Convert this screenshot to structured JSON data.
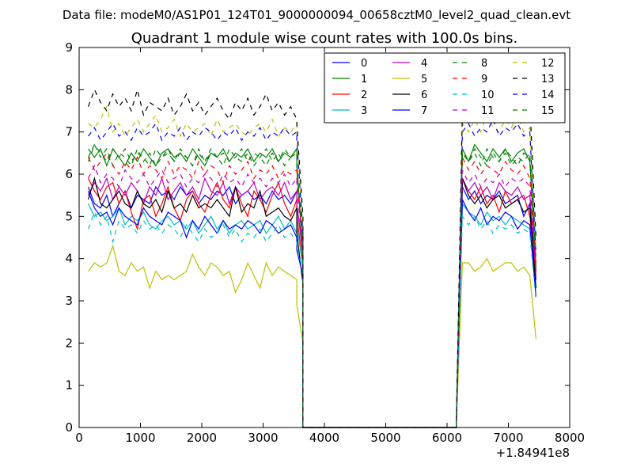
{
  "chart_data": {
    "type": "line",
    "suptitle": "Data file: modeM0/AS1P01_124T01_9000000094_00658cztM0_level2_quad_clean.evt",
    "title": "Quadrant 1 module wise count rates with 100.0s bins.",
    "xlabel": "",
    "ylabel": "",
    "x_offset_label": "+1.84941e8",
    "xlim": [
      0,
      8000
    ],
    "ylim": [
      0,
      9
    ],
    "xticks": [
      0,
      1000,
      2000,
      3000,
      4000,
      5000,
      6000,
      7000,
      8000
    ],
    "yticks": [
      0,
      1,
      2,
      3,
      4,
      5,
      6,
      7,
      8,
      9
    ],
    "legend_position": "top-right",
    "legend_columns": 4,
    "segment_a": {
      "x_start": 150,
      "x_step": 100,
      "count": 35
    },
    "drop_x": [
      3550,
      3650
    ],
    "zero_x": [
      3650,
      6150
    ],
    "rise_x": [
      6150,
      6250
    ],
    "segment_b": {
      "x_start": 6250,
      "x_step": 100,
      "count": 13
    },
    "series": [
      {
        "name": "0",
        "color": "#0000ff",
        "dash": "solid",
        "a": [
          5.7,
          5.3,
          5.2,
          5.5,
          5.0,
          5.3,
          5.6,
          5.2,
          5.5,
          5.4,
          5.3,
          5.7,
          5.5,
          5.6,
          5.4,
          5.7,
          5.5,
          5.6,
          5.3,
          5.5,
          5.4,
          5.6,
          5.5,
          5.7,
          5.3,
          5.5,
          5.6,
          5.4,
          5.5,
          5.3,
          5.6,
          5.4,
          5.5,
          5.3,
          5.6
        ],
        "drop": [
          5.2,
          4.3
        ],
        "b": [
          5.7,
          5.4,
          5.6,
          5.3,
          5.5,
          5.4,
          5.6,
          5.3,
          5.4,
          5.5,
          5.0,
          5.3,
          3.5
        ]
      },
      {
        "name": "1",
        "color": "#008000",
        "dash": "solid",
        "a": [
          6.6,
          6.4,
          6.6,
          6.2,
          6.6,
          6.4,
          6.2,
          6.5,
          6.3,
          6.6,
          6.4,
          6.2,
          6.5,
          6.6,
          6.4,
          6.5,
          6.3,
          6.6,
          6.4,
          6.2,
          6.5,
          6.4,
          6.6,
          6.3,
          6.5,
          6.4,
          6.6,
          6.3,
          6.5,
          6.4,
          6.6,
          6.3,
          6.5,
          6.4,
          6.6
        ],
        "drop": [
          6.3,
          4.0
        ],
        "b": [
          6.6,
          6.3,
          6.7,
          6.5,
          6.3,
          6.6,
          6.4,
          6.6,
          6.3,
          6.5,
          6.6,
          6.3,
          3.8
        ]
      },
      {
        "name": "2",
        "color": "#ff0000",
        "dash": "solid",
        "a": [
          5.9,
          5.6,
          5.4,
          5.7,
          5.8,
          5.3,
          5.6,
          5.1,
          4.7,
          5.4,
          5.5,
          5.0,
          5.3,
          5.7,
          5.2,
          4.9,
          5.4,
          5.6,
          5.3,
          5.1,
          5.5,
          5.8,
          5.4,
          5.2,
          5.7,
          5.3,
          5.0,
          5.6,
          5.4,
          5.1,
          5.5,
          5.8,
          5.3,
          5.0,
          5.4
        ],
        "drop": [
          5.0,
          3.9
        ],
        "b": [
          5.9,
          5.6,
          5.4,
          5.7,
          5.3,
          5.5,
          5.1,
          5.6,
          5.3,
          5.4,
          5.5,
          5.0,
          3.6
        ]
      },
      {
        "name": "3",
        "color": "#00bfbf",
        "dash": "solid",
        "a": [
          5.3,
          5.0,
          5.1,
          4.9,
          5.0,
          5.2,
          4.8,
          5.0,
          4.9,
          5.1,
          4.8,
          4.7,
          4.9,
          5.0,
          4.8,
          4.9,
          4.7,
          4.9,
          4.6,
          4.8,
          5.0,
          4.7,
          4.9,
          4.6,
          4.8,
          4.9,
          4.7,
          4.8,
          4.9,
          4.6,
          4.8,
          5.0,
          4.7,
          4.9,
          4.6
        ],
        "drop": [
          4.8,
          3.8
        ],
        "b": [
          5.3,
          5.1,
          5.0,
          4.8,
          5.1,
          4.9,
          5.0,
          4.8,
          5.0,
          4.9,
          4.8,
          4.7,
          3.3
        ]
      },
      {
        "name": "4",
        "color": "#bf00bf",
        "dash": "solid",
        "a": [
          5.5,
          5.8,
          5.6,
          5.9,
          5.4,
          5.7,
          5.5,
          5.8,
          5.6,
          5.3,
          5.7,
          5.5,
          5.9,
          5.4,
          5.6,
          5.8,
          5.5,
          5.7,
          5.4,
          5.9,
          5.6,
          5.5,
          5.8,
          5.3,
          5.7,
          5.5,
          5.6,
          5.8,
          5.4,
          5.6,
          5.7,
          5.5,
          5.8,
          5.4,
          5.6
        ],
        "drop": [
          5.3,
          4.1
        ],
        "b": [
          5.9,
          5.6,
          5.8,
          5.5,
          5.7,
          5.4,
          5.8,
          5.6,
          5.5,
          5.7,
          5.4,
          5.5,
          3.7
        ]
      },
      {
        "name": "5",
        "color": "#bfbf00",
        "dash": "solid",
        "a": [
          3.7,
          3.9,
          3.8,
          3.9,
          4.3,
          3.7,
          3.6,
          3.9,
          3.7,
          3.8,
          3.3,
          3.7,
          3.5,
          3.6,
          3.5,
          3.6,
          3.7,
          4.1,
          3.8,
          3.6,
          3.9,
          3.8,
          3.6,
          3.7,
          3.2,
          3.5,
          3.9,
          3.6,
          3.3,
          3.9,
          3.6,
          3.8,
          3.7,
          3.6,
          3.5
        ],
        "drop": [
          2.9,
          2.0
        ],
        "b": [
          3.9,
          3.9,
          3.7,
          3.8,
          4.0,
          3.7,
          3.8,
          3.9,
          3.9,
          3.7,
          3.8,
          3.6,
          2.1
        ]
      },
      {
        "name": "6",
        "color": "#000000",
        "dash": "solid",
        "a": [
          5.4,
          5.9,
          5.3,
          5.2,
          5.4,
          5.6,
          5.3,
          5.2,
          5.6,
          5.3,
          5.2,
          5.4,
          5.1,
          5.6,
          5.2,
          5.3,
          5.1,
          5.5,
          5.2,
          5.3,
          5.2,
          5.4,
          5.2,
          5.0,
          5.7,
          5.1,
          5.3,
          5.2,
          5.6,
          5.0,
          5.1,
          5.2,
          5.0,
          4.9,
          5.2
        ],
        "drop": [
          4.6,
          3.4
        ],
        "b": [
          5.9,
          5.5,
          5.3,
          5.5,
          5.2,
          5.4,
          5.5,
          5.2,
          5.3,
          5.4,
          5.1,
          5.2,
          3.3
        ]
      },
      {
        "name": "7",
        "color": "#0000ff",
        "dash": "solid",
        "a": [
          5.6,
          5.2,
          5.0,
          5.1,
          4.8,
          5.2,
          5.0,
          4.9,
          4.8,
          5.2,
          5.0,
          4.9,
          4.8,
          5.1,
          5.0,
          4.9,
          4.5,
          4.9,
          4.7,
          5.0,
          4.8,
          4.6,
          4.9,
          4.7,
          4.8,
          4.7,
          4.9,
          4.8,
          4.6,
          4.9,
          4.8,
          4.6,
          4.7,
          4.8,
          4.5
        ],
        "drop": [
          4.2,
          3.6
        ],
        "b": [
          5.4,
          5.1,
          4.9,
          5.2,
          4.8,
          5.0,
          4.9,
          5.1,
          5.0,
          4.7,
          4.9,
          4.8,
          3.1
        ]
      },
      {
        "name": "8",
        "color": "#008000",
        "dash": "dashed",
        "a": [
          6.3,
          6.7,
          6.4,
          6.6,
          6.2,
          6.5,
          6.4,
          6.2,
          6.6,
          6.3,
          6.5,
          6.2,
          6.4,
          6.6,
          6.3,
          6.5,
          6.4,
          6.2,
          6.6,
          6.3,
          6.5,
          6.4,
          6.2,
          6.6,
          6.4,
          6.3,
          6.5,
          6.2,
          6.4,
          6.6,
          6.3,
          6.5,
          6.2,
          6.4,
          6.6
        ],
        "drop": [
          6.1,
          4.4
        ],
        "b": [
          6.6,
          6.3,
          6.5,
          6.2,
          6.6,
          6.4,
          6.3,
          6.5,
          6.2,
          6.4,
          6.3,
          6.5,
          3.9
        ]
      },
      {
        "name": "9",
        "color": "#ff0000",
        "dash": "dashed",
        "a": [
          6.4,
          6.1,
          6.3,
          6.5,
          6.2,
          6.0,
          6.3,
          6.1,
          6.4,
          6.0,
          6.2,
          6.1,
          5.9,
          6.3,
          6.0,
          6.2,
          6.1,
          5.9,
          6.3,
          6.0,
          6.2,
          6.1,
          5.8,
          6.2,
          6.0,
          6.1,
          6.3,
          5.9,
          6.1,
          6.0,
          6.2,
          5.9,
          6.1,
          6.0,
          6.1
        ],
        "drop": [
          5.9,
          4.3
        ],
        "b": [
          6.4,
          6.1,
          6.3,
          6.0,
          6.2,
          6.1,
          6.0,
          6.3,
          6.1,
          6.0,
          6.2,
          5.9,
          3.8
        ]
      },
      {
        "name": "10",
        "color": "#00bfbf",
        "dash": "dashed",
        "a": [
          4.7,
          5.1,
          4.8,
          5.0,
          4.4,
          4.9,
          4.7,
          4.8,
          4.6,
          4.9,
          4.7,
          4.8,
          4.6,
          4.8,
          4.7,
          4.5,
          4.8,
          4.6,
          4.4,
          4.7,
          4.5,
          4.6,
          4.8,
          4.5,
          4.7,
          4.4,
          4.6,
          4.5,
          4.7,
          4.4,
          4.6,
          4.8,
          4.5,
          4.6,
          4.4
        ],
        "drop": [
          4.3,
          3.7
        ],
        "b": [
          5.0,
          4.8,
          5.0,
          4.7,
          4.9,
          4.6,
          4.8,
          4.7,
          4.8,
          4.6,
          4.7,
          4.6,
          3.0
        ]
      },
      {
        "name": "11",
        "color": "#bf00bf",
        "dash": "dashed",
        "a": [
          5.9,
          6.2,
          5.8,
          6.0,
          5.9,
          5.7,
          6.1,
          5.9,
          5.8,
          6.0,
          5.7,
          5.9,
          6.1,
          5.8,
          5.9,
          6.0,
          5.7,
          5.9,
          5.8,
          6.0,
          5.9,
          5.7,
          6.0,
          5.8,
          5.9,
          5.7,
          6.0,
          5.8,
          5.9,
          5.7,
          5.9,
          5.8,
          6.0,
          5.7,
          5.9
        ],
        "drop": [
          5.7,
          4.2
        ],
        "b": [
          6.1,
          5.8,
          6.0,
          5.7,
          5.9,
          5.8,
          6.0,
          5.7,
          5.9,
          5.8,
          5.9,
          5.7,
          3.7
        ]
      },
      {
        "name": "12",
        "color": "#bfbf00",
        "dash": "dashed",
        "a": [
          7.2,
          7.1,
          7.3,
          7.6,
          7.0,
          7.2,
          6.9,
          7.1,
          7.3,
          7.0,
          7.2,
          7.4,
          7.0,
          7.1,
          7.3,
          6.9,
          7.2,
          7.0,
          7.1,
          7.2,
          6.9,
          7.3,
          7.0,
          7.1,
          7.2,
          7.0,
          6.9,
          7.1,
          7.2,
          7.0,
          7.3,
          6.9,
          7.1,
          7.0,
          7.2
        ],
        "drop": [
          6.9,
          4.7
        ],
        "b": [
          7.2,
          7.0,
          7.3,
          7.0,
          7.4,
          7.1,
          7.0,
          7.3,
          7.1,
          7.4,
          7.0,
          7.1,
          4.2
        ]
      },
      {
        "name": "13",
        "color": "#000000",
        "dash": "dashed",
        "a": [
          7.6,
          8.0,
          7.7,
          7.5,
          7.9,
          7.6,
          7.8,
          7.5,
          8.0,
          7.4,
          7.7,
          7.6,
          7.5,
          7.8,
          7.4,
          7.6,
          7.9,
          7.5,
          7.7,
          7.4,
          7.6,
          7.8,
          7.5,
          7.3,
          7.7,
          7.5,
          7.8,
          7.4,
          7.6,
          7.9,
          7.5,
          7.7,
          7.4,
          7.6,
          7.3
        ],
        "drop": [
          7.2,
          5.0
        ],
        "b": [
          7.6,
          7.9,
          7.5,
          7.8,
          8.2,
          7.6,
          7.9,
          7.5,
          7.7,
          7.8,
          7.5,
          7.7,
          4.5
        ]
      },
      {
        "name": "14",
        "color": "#0000ff",
        "dash": "dashed",
        "a": [
          6.9,
          7.1,
          6.8,
          7.0,
          7.2,
          6.9,
          7.0,
          6.8,
          7.1,
          6.9,
          7.0,
          7.2,
          6.8,
          7.0,
          6.9,
          7.1,
          6.8,
          7.0,
          6.9,
          7.1,
          7.0,
          6.8,
          7.0,
          6.9,
          7.1,
          6.8,
          7.0,
          6.9,
          7.1,
          6.8,
          7.0,
          6.9,
          7.1,
          6.9,
          7.0
        ],
        "drop": [
          6.8,
          4.6
        ],
        "b": [
          7.0,
          7.2,
          6.9,
          7.1,
          7.0,
          7.3,
          6.9,
          7.1,
          7.0,
          7.2,
          6.9,
          7.0,
          4.1
        ]
      },
      {
        "name": "15",
        "color": "#008000",
        "dash": "dashed",
        "a": [
          6.4,
          6.7,
          6.5,
          6.3,
          6.6,
          6.4,
          6.6,
          6.3,
          6.5,
          6.4,
          6.2,
          6.6,
          6.4,
          6.5,
          6.3,
          6.6,
          6.4,
          6.2,
          6.5,
          6.3,
          6.6,
          6.4,
          6.5,
          6.3,
          6.4,
          6.6,
          6.3,
          6.5,
          6.4,
          6.2,
          6.5,
          6.3,
          6.6,
          6.4,
          6.5
        ],
        "drop": [
          6.2,
          4.5
        ],
        "b": [
          6.5,
          6.3,
          6.6,
          6.4,
          6.2,
          6.5,
          6.3,
          6.6,
          6.4,
          6.2,
          6.5,
          6.4,
          4.0
        ]
      }
    ]
  }
}
